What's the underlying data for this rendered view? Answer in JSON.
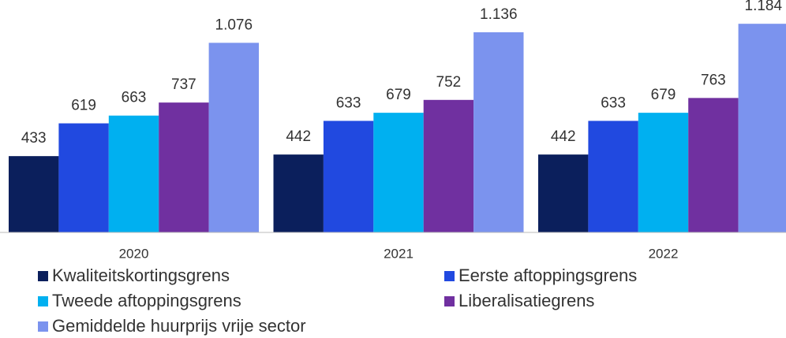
{
  "chart_data": {
    "type": "bar",
    "categories": [
      "2020",
      "2021",
      "2022"
    ],
    "series": [
      {
        "name": "Kwaliteitskortingsgrens",
        "color": "#0b1f5c",
        "values": [
          433,
          442,
          442
        ]
      },
      {
        "name": "Eerste aftoppingsgrens",
        "color": "#2149e0",
        "values": [
          619,
          633,
          633
        ]
      },
      {
        "name": "Tweede aftoppingsgrens",
        "color": "#00b0f0",
        "values": [
          663,
          679,
          679
        ]
      },
      {
        "name": "Liberalisatiegrens",
        "color": "#7030a0",
        "values": [
          737,
          752,
          763
        ]
      },
      {
        "name": "Gemiddelde huurprijs vrije sector",
        "color": "#7b93ee",
        "values": [
          1076,
          1136,
          1184
        ],
        "value_labels": [
          "1.076",
          "1.136",
          "1.184"
        ]
      }
    ],
    "ylim": [
      0,
      1310
    ]
  }
}
